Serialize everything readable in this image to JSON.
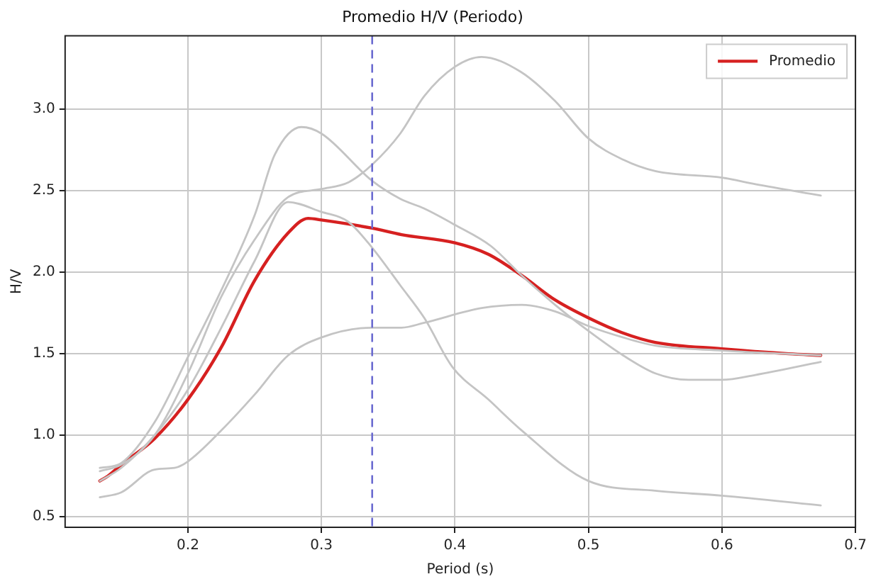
{
  "chart_data": {
    "type": "line",
    "title": "Promedio H/V (Periodo)",
    "xlabel": "Period (s)",
    "ylabel": "H/V",
    "xlim": [
      0.108,
      0.7
    ],
    "ylim": [
      0.436,
      3.45
    ],
    "xticks": [
      0.2,
      0.3,
      0.4,
      0.5,
      0.6,
      0.7
    ],
    "yticks": [
      0.5,
      {
        "value": 1,
        "label": "1.0"
      },
      1.5,
      {
        "value": 2,
        "label": "2.0"
      },
      2.5,
      {
        "value": 3,
        "label": "3.0"
      }
    ],
    "grid": true,
    "legend": "top right",
    "marker": "none",
    "line_style": "solid",
    "ref_lines": [
      {
        "axis": "x",
        "value": 0.338,
        "label": null,
        "color": "#6b6bd0",
        "line_style": "dashed"
      }
    ],
    "series": [
      {
        "color": "#c4c4c4",
        "x": [
          0.134,
          0.15,
          0.175,
          0.2,
          0.225,
          0.25,
          0.275,
          0.3,
          0.32,
          0.338,
          0.359,
          0.377,
          0.4,
          0.42,
          0.449,
          0.475,
          0.5,
          0.526,
          0.55,
          0.6,
          0.625,
          0.674
        ],
        "values": [
          0.78,
          0.82,
          1.0,
          1.38,
          1.85,
          2.2,
          2.46,
          2.51,
          2.55,
          2.66,
          2.85,
          3.08,
          3.26,
          3.32,
          3.23,
          3.05,
          2.82,
          2.69,
          2.62,
          2.58,
          2.54,
          2.47
        ]
      },
      {
        "color": "#c4c4c4",
        "x": [
          0.134,
          0.15,
          0.175,
          0.2,
          0.225,
          0.25,
          0.265,
          0.285,
          0.3,
          0.338,
          0.359,
          0.377,
          0.4,
          0.427,
          0.45,
          0.475,
          0.5,
          0.526,
          0.55,
          0.575,
          0.6,
          0.625,
          0.674
        ],
        "values": [
          0.8,
          0.83,
          1.08,
          1.48,
          1.89,
          2.35,
          2.72,
          2.89,
          2.85,
          2.56,
          2.45,
          2.39,
          2.29,
          2.16,
          1.98,
          1.8,
          1.64,
          1.49,
          1.38,
          1.34,
          1.34,
          1.37,
          1.45
        ]
      },
      {
        "color": "#c4c4c4",
        "x": [
          0.134,
          0.15,
          0.175,
          0.2,
          0.225,
          0.25,
          0.275,
          0.3,
          0.32,
          0.338,
          0.359,
          0.377,
          0.398,
          0.425,
          0.45,
          0.5,
          0.55,
          0.6,
          0.674
        ],
        "values": [
          0.72,
          0.8,
          1.0,
          1.28,
          1.66,
          2.07,
          2.43,
          2.37,
          2.31,
          2.15,
          1.92,
          1.72,
          1.42,
          1.22,
          1.03,
          0.72,
          0.66,
          0.63,
          0.57
        ]
      },
      {
        "color": "#c4c4c4",
        "x": [
          0.134,
          0.15,
          0.175,
          0.19,
          0.2,
          0.225,
          0.25,
          0.275,
          0.3,
          0.338,
          0.36,
          0.377,
          0.42,
          0.45,
          0.475,
          0.5,
          0.526,
          0.55,
          0.6,
          0.674
        ],
        "values": [
          0.62,
          0.65,
          0.79,
          0.8,
          0.84,
          1.03,
          1.25,
          1.49,
          1.6,
          1.66,
          1.66,
          1.69,
          1.78,
          1.8,
          1.76,
          1.67,
          1.6,
          1.55,
          1.52,
          1.49
        ]
      },
      {
        "name": "Promedio",
        "color": "#d62020",
        "x": [
          0.134,
          0.14,
          0.15,
          0.175,
          0.2,
          0.225,
          0.25,
          0.275,
          0.29,
          0.3,
          0.338,
          0.36,
          0.4,
          0.425,
          0.45,
          0.475,
          0.5,
          0.525,
          0.55,
          0.6,
          0.65,
          0.674
        ],
        "values": [
          0.72,
          0.75,
          0.82,
          0.98,
          1.22,
          1.54,
          1.95,
          2.24,
          2.33,
          2.32,
          2.27,
          2.23,
          2.18,
          2.11,
          1.98,
          1.83,
          1.72,
          1.63,
          1.57,
          1.53,
          1.5,
          1.49
        ]
      }
    ]
  }
}
